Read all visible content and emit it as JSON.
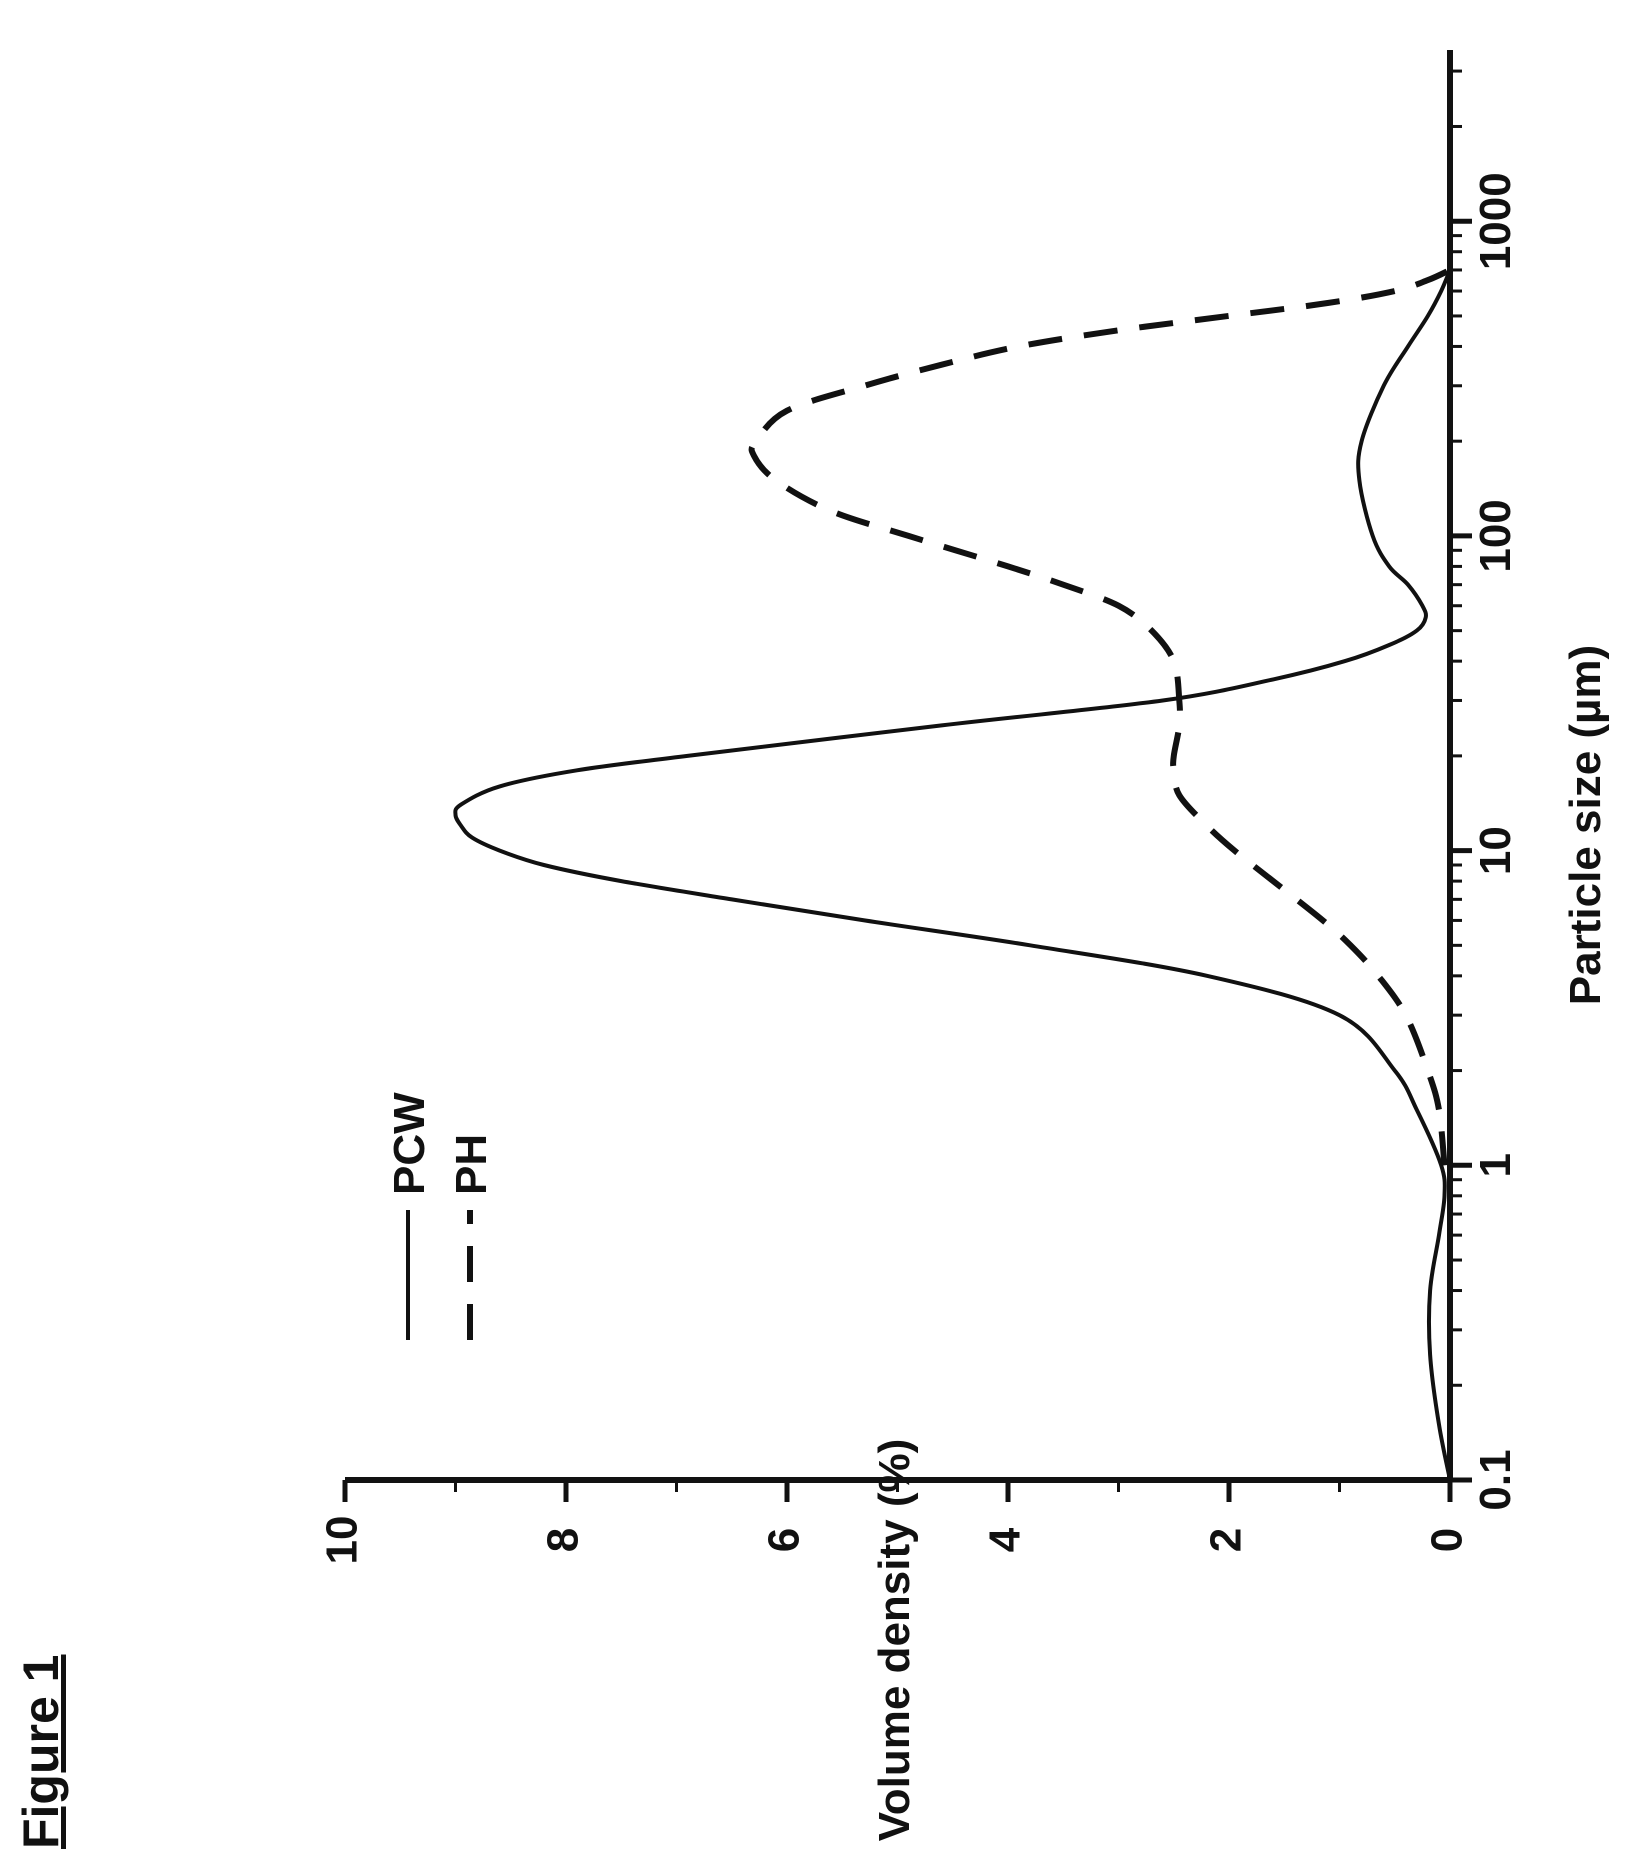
{
  "figure_label": "Figure 1",
  "chart_data": {
    "type": "line",
    "title": "",
    "xlabel": "Particle size (µm)",
    "ylabel": "Volume density (%)",
    "x_scale": "log",
    "xlim": [
      0.1,
      3500
    ],
    "ylim": [
      0,
      10
    ],
    "x_ticks": [
      0.1,
      1,
      10,
      100,
      1000
    ],
    "x_tick_labels": [
      "0.1",
      "1",
      "10",
      "100",
      "1000"
    ],
    "y_ticks": [
      0,
      2,
      4,
      6,
      8,
      10
    ],
    "y_tick_labels": [
      "0",
      "2",
      "4",
      "6",
      "8",
      "10"
    ],
    "grid": false,
    "legend_position": "top-left",
    "orientation": "figure rotated 90° counter-clockwise on the page",
    "series": [
      {
        "name": "PCW",
        "style": "solid",
        "color": "#111111",
        "x": [
          0.1,
          0.15,
          0.25,
          0.4,
          0.6,
          0.8,
          1.0,
          1.5,
          2.0,
          3.0,
          4.0,
          5.0,
          6.0,
          7.0,
          8.0,
          9.0,
          10.0,
          11.0,
          12.0,
          13.0,
          14.0,
          16.0,
          18.0,
          20.0,
          25.0,
          30.0,
          35.0,
          40.0,
          45.0,
          50.0,
          55.0,
          60.0,
          70.0,
          80.0,
          100.0,
          150.0,
          200.0,
          300.0,
          400.0,
          500.0,
          600.0,
          700.0
        ],
        "y": [
          0.0,
          0.1,
          0.18,
          0.18,
          0.1,
          0.05,
          0.08,
          0.3,
          0.5,
          1.0,
          2.2,
          3.8,
          5.3,
          6.5,
          7.5,
          8.2,
          8.6,
          8.85,
          8.95,
          9.0,
          8.95,
          8.6,
          7.9,
          6.9,
          4.6,
          2.6,
          1.6,
          0.95,
          0.55,
          0.3,
          0.22,
          0.25,
          0.38,
          0.55,
          0.7,
          0.82,
          0.8,
          0.6,
          0.38,
          0.2,
          0.08,
          0.0
        ]
      },
      {
        "name": "PH",
        "style": "dashed",
        "color": "#111111",
        "x": [
          1.0,
          1.5,
          2.0,
          3.0,
          4.0,
          5.0,
          6.0,
          8.0,
          10.0,
          12.0,
          15.0,
          18.0,
          20.0,
          25.0,
          30.0,
          40.0,
          50.0,
          60.0,
          70.0,
          80.0,
          100.0,
          120.0,
          150.0,
          180.0,
          200.0,
          250.0,
          300.0,
          350.0,
          400.0,
          450.0,
          500.0,
          550.0,
          600.0,
          650.0,
          700.0
        ],
        "y": [
          0.05,
          0.1,
          0.2,
          0.4,
          0.65,
          0.9,
          1.15,
          1.6,
          1.95,
          2.2,
          2.45,
          2.5,
          2.5,
          2.45,
          2.45,
          2.5,
          2.7,
          3.0,
          3.5,
          4.0,
          4.9,
          5.6,
          6.1,
          6.3,
          6.28,
          6.0,
          5.3,
          4.6,
          3.9,
          3.0,
          2.0,
          1.1,
          0.5,
          0.2,
          0.0
        ]
      }
    ]
  }
}
